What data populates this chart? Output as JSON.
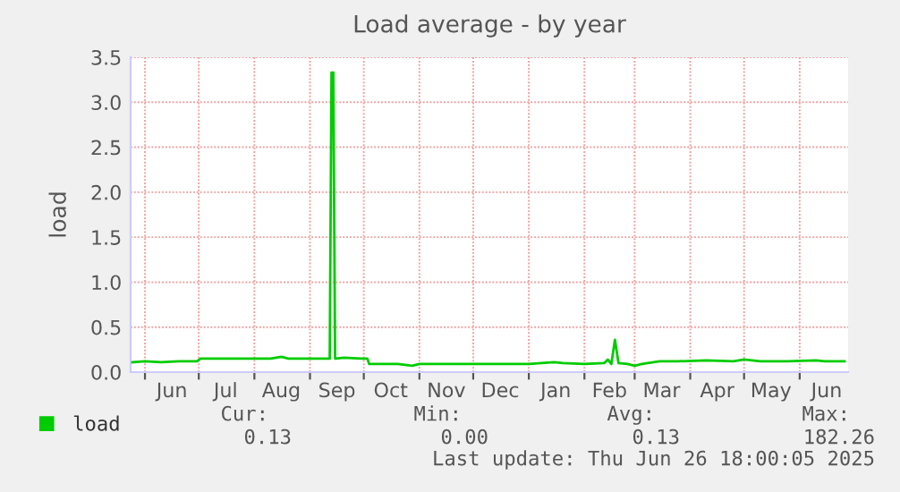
{
  "chart_data": {
    "type": "line",
    "title": "Load average - by year",
    "ylabel": "load",
    "x": [
      "2024-05-25",
      "2024-06-01",
      "2024-06-10",
      "2024-06-20",
      "2024-06-30",
      "2024-07-02",
      "2024-07-15",
      "2024-07-30",
      "2024-08-10",
      "2024-08-16",
      "2024-08-20",
      "2024-09-01",
      "2024-09-12",
      "2024-09-13",
      "2024-09-14",
      "2024-09-15",
      "2024-09-20",
      "2024-09-30",
      "2024-10-03",
      "2024-10-04",
      "2024-10-20",
      "2024-10-28",
      "2024-11-01",
      "2024-11-15",
      "2024-12-01",
      "2024-12-15",
      "2025-01-01",
      "2025-01-15",
      "2025-01-20",
      "2025-02-01",
      "2025-02-12",
      "2025-02-14",
      "2025-02-16",
      "2025-02-18",
      "2025-02-20",
      "2025-02-25",
      "2025-03-01",
      "2025-03-05",
      "2025-03-15",
      "2025-03-25",
      "2025-04-10",
      "2025-04-25",
      "2025-05-01",
      "2025-05-10",
      "2025-05-25",
      "2025-06-10",
      "2025-06-15",
      "2025-06-26"
    ],
    "series": [
      {
        "name": "load",
        "color": "#00cc00",
        "values": [
          0.11,
          0.12,
          0.11,
          0.12,
          0.12,
          0.15,
          0.15,
          0.15,
          0.15,
          0.17,
          0.15,
          0.15,
          0.15,
          3.33,
          3.33,
          0.15,
          0.16,
          0.15,
          0.15,
          0.09,
          0.09,
          0.07,
          0.09,
          0.09,
          0.09,
          0.09,
          0.09,
          0.11,
          0.1,
          0.09,
          0.1,
          0.14,
          0.09,
          0.36,
          0.1,
          0.09,
          0.07,
          0.09,
          0.12,
          0.12,
          0.13,
          0.12,
          0.14,
          0.12,
          0.12,
          0.13,
          0.12,
          0.12
        ]
      }
    ],
    "xlim": [
      "2024-05-24",
      "2025-06-28"
    ],
    "xticks": [
      {
        "value": "2024-06-01",
        "label": null
      },
      {
        "value": "2024-06-16",
        "label": "Jun"
      },
      {
        "value": "2024-07-01",
        "label": null
      },
      {
        "value": "2024-07-16",
        "label": "Jul"
      },
      {
        "value": "2024-08-01",
        "label": null
      },
      {
        "value": "2024-08-16",
        "label": "Aug"
      },
      {
        "value": "2024-09-01",
        "label": null
      },
      {
        "value": "2024-09-16",
        "label": "Sep"
      },
      {
        "value": "2024-10-01",
        "label": null
      },
      {
        "value": "2024-10-16",
        "label": "Oct"
      },
      {
        "value": "2024-11-01",
        "label": null
      },
      {
        "value": "2024-11-16",
        "label": "Nov"
      },
      {
        "value": "2024-12-01",
        "label": null
      },
      {
        "value": "2024-12-16",
        "label": "Dec"
      },
      {
        "value": "2025-01-01",
        "label": null
      },
      {
        "value": "2025-01-16",
        "label": "Jan"
      },
      {
        "value": "2025-02-01",
        "label": null
      },
      {
        "value": "2025-02-15",
        "label": "Feb"
      },
      {
        "value": "2025-03-01",
        "label": null
      },
      {
        "value": "2025-03-16",
        "label": "Mar"
      },
      {
        "value": "2025-04-01",
        "label": null
      },
      {
        "value": "2025-04-16",
        "label": "Apr"
      },
      {
        "value": "2025-05-01",
        "label": null
      },
      {
        "value": "2025-05-16",
        "label": "May"
      },
      {
        "value": "2025-06-01",
        "label": null
      },
      {
        "value": "2025-06-16",
        "label": "Jun"
      }
    ],
    "ylim": [
      0,
      3.5
    ],
    "yticks": [
      {
        "value": 0,
        "label": "0.0"
      },
      {
        "value": 0.5,
        "label": "0.5"
      },
      {
        "value": 1,
        "label": "1.0"
      },
      {
        "value": 1.5,
        "label": "1.5"
      },
      {
        "value": 2,
        "label": "2.0"
      },
      {
        "value": 2.5,
        "label": "2.5"
      },
      {
        "value": 3,
        "label": "3.0"
      },
      {
        "value": 3.5,
        "label": "3.5"
      }
    ],
    "grid": true,
    "legend": "bottom left",
    "marker": "none",
    "line_style": "solid",
    "annotations": [
      "Cur:",
      "0.13",
      "Min:",
      "0.00",
      "Avg:",
      "0.13",
      "Max:",
      "182.26",
      "Last update: Thu Jun 26 18:00:05 2025"
    ]
  }
}
